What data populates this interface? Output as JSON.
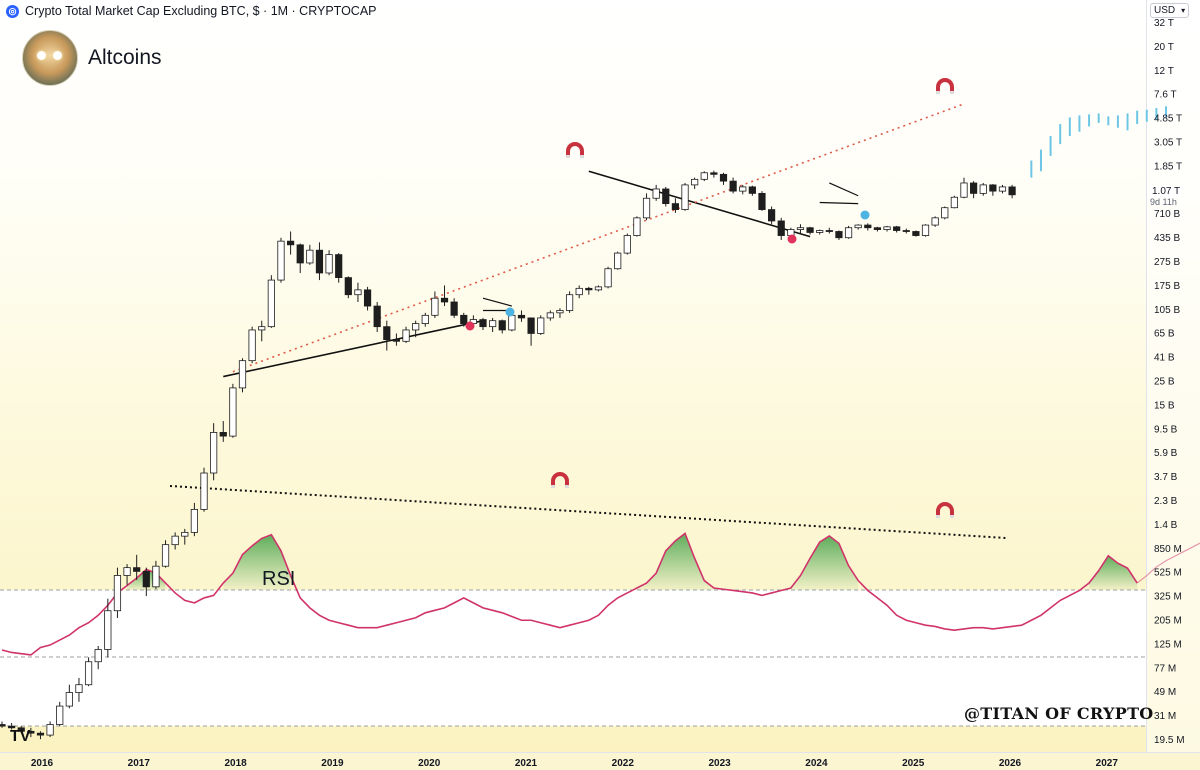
{
  "header": {
    "symbol_title": "Crypto Total Market Cap Excluding BTC, $ · 1M · CRYPTOCAP",
    "logo_icon": "crypto-coin-icon"
  },
  "brand": {
    "name": "Altcoins",
    "avatar_icon": "avatar-portrait-icon"
  },
  "axis_controls": {
    "currency": "USD",
    "dropdown_icon": "chevron-down-icon"
  },
  "last_price": {
    "value": "1.07 T",
    "countdown": "9d 11h"
  },
  "rsi_label": "RSI",
  "watermark": "@TITAN OF CRYPTO",
  "platform_logo": "TV",
  "colors": {
    "bull_candle": "#ffffff",
    "bear_candle": "#1e1e1e",
    "projection": "#6ec6e6",
    "rsi_line": "#d0336b",
    "rsi_fill": "#43a047",
    "resistance_dots": "#e05a4a",
    "red_marker": "#e0335b",
    "blue_marker": "#4db3e0",
    "magnet": "#c8313e"
  },
  "chart_data": {
    "type": "candlestick",
    "scale": "log",
    "y_ticks": [
      "32 T",
      "20 T",
      "12 T",
      "7.6 T",
      "4.85 T",
      "3.05 T",
      "1.85 T",
      "1.07 T",
      "710 B",
      "435 B",
      "275 B",
      "175 B",
      "105 B",
      "65 B",
      "41 B",
      "25 B",
      "15 B",
      "9.5 B",
      "5.9 B",
      "3.7 B",
      "2.3 B",
      "1.4 B",
      "850 M",
      "525 M",
      "325 M",
      "205 M",
      "125 M",
      "77 M",
      "49 M",
      "31 M",
      "19.5 M"
    ],
    "x_ticks": [
      "2016",
      "2017",
      "2018",
      "2019",
      "2020",
      "2021",
      "2022",
      "2023",
      "2024",
      "2025",
      "2026",
      "2027"
    ],
    "candles": [
      {
        "o": 32,
        "h": 34,
        "l": 30,
        "c": 31
      },
      {
        "o": 31,
        "h": 33,
        "l": 29,
        "c": 30
      },
      {
        "o": 30,
        "h": 31,
        "l": 27,
        "c": 28
      },
      {
        "o": 28,
        "h": 30,
        "l": 25,
        "c": 27
      },
      {
        "o": 27,
        "h": 28,
        "l": 24,
        "c": 26
      },
      {
        "o": 26,
        "h": 34,
        "l": 25,
        "c": 32
      },
      {
        "o": 32,
        "h": 50,
        "l": 31,
        "c": 46
      },
      {
        "o": 46,
        "h": 70,
        "l": 44,
        "c": 60
      },
      {
        "o": 60,
        "h": 80,
        "l": 50,
        "c": 70
      },
      {
        "o": 70,
        "h": 120,
        "l": 68,
        "c": 110
      },
      {
        "o": 110,
        "h": 150,
        "l": 95,
        "c": 140
      },
      {
        "o": 140,
        "h": 380,
        "l": 120,
        "c": 300
      },
      {
        "o": 300,
        "h": 700,
        "l": 260,
        "c": 600
      },
      {
        "o": 600,
        "h": 750,
        "l": 500,
        "c": 700
      },
      {
        "o": 700,
        "h": 900,
        "l": 550,
        "c": 650
      },
      {
        "o": 650,
        "h": 700,
        "l": 400,
        "c": 480
      },
      {
        "o": 480,
        "h": 800,
        "l": 460,
        "c": 720
      },
      {
        "o": 720,
        "h": 1200,
        "l": 700,
        "c": 1100
      },
      {
        "o": 1100,
        "h": 1400,
        "l": 1000,
        "c": 1300
      },
      {
        "o": 1300,
        "h": 1500,
        "l": 1100,
        "c": 1400
      },
      {
        "o": 1400,
        "h": 2500,
        "l": 1300,
        "c": 2200
      },
      {
        "o": 2200,
        "h": 5000,
        "l": 2100,
        "c": 4500
      },
      {
        "o": 4500,
        "h": 12000,
        "l": 3900,
        "c": 10000
      },
      {
        "o": 10000,
        "h": 12500,
        "l": 8300,
        "c": 9300
      },
      {
        "o": 9300,
        "h": 26000,
        "l": 9000,
        "c": 24000
      },
      {
        "o": 24000,
        "h": 43000,
        "l": 22000,
        "c": 41000
      },
      {
        "o": 41000,
        "h": 80000,
        "l": 39000,
        "c": 75000
      },
      {
        "o": 75000,
        "h": 90000,
        "l": 60000,
        "c": 80000
      },
      {
        "o": 80000,
        "h": 220000,
        "l": 78000,
        "c": 200000
      },
      {
        "o": 200000,
        "h": 460000,
        "l": 190000,
        "c": 430000
      },
      {
        "o": 430000,
        "h": 520000,
        "l": 330000,
        "c": 400000
      },
      {
        "o": 400000,
        "h": 410000,
        "l": 230000,
        "c": 280000
      },
      {
        "o": 280000,
        "h": 400000,
        "l": 270000,
        "c": 360000
      },
      {
        "o": 360000,
        "h": 420000,
        "l": 200000,
        "c": 230000
      },
      {
        "o": 230000,
        "h": 360000,
        "l": 220000,
        "c": 330000
      },
      {
        "o": 330000,
        "h": 340000,
        "l": 190000,
        "c": 210000
      },
      {
        "o": 210000,
        "h": 215000,
        "l": 140000,
        "c": 150000
      },
      {
        "o": 150000,
        "h": 190000,
        "l": 130000,
        "c": 165000
      },
      {
        "o": 165000,
        "h": 175000,
        "l": 110000,
        "c": 120000
      },
      {
        "o": 120000,
        "h": 130000,
        "l": 72000,
        "c": 80000
      },
      {
        "o": 80000,
        "h": 90000,
        "l": 50000,
        "c": 62000
      },
      {
        "o": 62000,
        "h": 70000,
        "l": 55000,
        "c": 60000
      },
      {
        "o": 60000,
        "h": 80000,
        "l": 58000,
        "c": 75000
      },
      {
        "o": 75000,
        "h": 90000,
        "l": 65000,
        "c": 85000
      },
      {
        "o": 85000,
        "h": 105000,
        "l": 80000,
        "c": 100000
      },
      {
        "o": 100000,
        "h": 160000,
        "l": 95000,
        "c": 140000
      },
      {
        "o": 140000,
        "h": 180000,
        "l": 120000,
        "c": 130000
      },
      {
        "o": 130000,
        "h": 140000,
        "l": 95000,
        "c": 100000
      },
      {
        "o": 100000,
        "h": 105000,
        "l": 80000,
        "c": 85000
      },
      {
        "o": 85000,
        "h": 100000,
        "l": 78000,
        "c": 92000
      },
      {
        "o": 92000,
        "h": 95000,
        "l": 75000,
        "c": 80000
      },
      {
        "o": 80000,
        "h": 95000,
        "l": 72000,
        "c": 90000
      },
      {
        "o": 90000,
        "h": 92000,
        "l": 70000,
        "c": 75000
      },
      {
        "o": 75000,
        "h": 110000,
        "l": 73000,
        "c": 100000
      },
      {
        "o": 100000,
        "h": 110000,
        "l": 88000,
        "c": 95000
      },
      {
        "o": 95000,
        "h": 96000,
        "l": 55000,
        "c": 70000
      },
      {
        "o": 70000,
        "h": 100000,
        "l": 68000,
        "c": 95000
      },
      {
        "o": 95000,
        "h": 110000,
        "l": 90000,
        "c": 105000
      },
      {
        "o": 105000,
        "h": 115000,
        "l": 95000,
        "c": 110000
      },
      {
        "o": 110000,
        "h": 160000,
        "l": 105000,
        "c": 150000
      },
      {
        "o": 150000,
        "h": 180000,
        "l": 140000,
        "c": 170000
      },
      {
        "o": 170000,
        "h": 175000,
        "l": 150000,
        "c": 165000
      },
      {
        "o": 165000,
        "h": 180000,
        "l": 160000,
        "c": 175000
      },
      {
        "o": 175000,
        "h": 260000,
        "l": 170000,
        "c": 250000
      },
      {
        "o": 250000,
        "h": 350000,
        "l": 245000,
        "c": 340000
      },
      {
        "o": 340000,
        "h": 500000,
        "l": 330000,
        "c": 480000
      },
      {
        "o": 480000,
        "h": 700000,
        "l": 470000,
        "c": 680000
      },
      {
        "o": 680000,
        "h": 1100000,
        "l": 650000,
        "c": 1000000
      },
      {
        "o": 1000000,
        "h": 1300000,
        "l": 950000,
        "c": 1200000
      },
      {
        "o": 1200000,
        "h": 1250000,
        "l": 850000,
        "c": 900000
      },
      {
        "o": 900000,
        "h": 1000000,
        "l": 750000,
        "c": 800000
      },
      {
        "o": 800000,
        "h": 1350000,
        "l": 780000,
        "c": 1300000
      },
      {
        "o": 1300000,
        "h": 1500000,
        "l": 1200000,
        "c": 1450000
      },
      {
        "o": 1450000,
        "h": 1700000,
        "l": 1400000,
        "c": 1650000
      },
      {
        "o": 1650000,
        "h": 1720000,
        "l": 1500000,
        "c": 1600000
      },
      {
        "o": 1600000,
        "h": 1650000,
        "l": 1300000,
        "c": 1400000
      },
      {
        "o": 1400000,
        "h": 1500000,
        "l": 1100000,
        "c": 1150000
      },
      {
        "o": 1150000,
        "h": 1300000,
        "l": 1080000,
        "c": 1250000
      },
      {
        "o": 1250000,
        "h": 1280000,
        "l": 1050000,
        "c": 1100000
      },
      {
        "o": 1100000,
        "h": 1150000,
        "l": 780000,
        "c": 800000
      },
      {
        "o": 800000,
        "h": 850000,
        "l": 600000,
        "c": 640000
      },
      {
        "o": 640000,
        "h": 680000,
        "l": 440000,
        "c": 480000
      },
      {
        "o": 480000,
        "h": 560000,
        "l": 460000,
        "c": 540000
      },
      {
        "o": 540000,
        "h": 600000,
        "l": 500000,
        "c": 560000
      },
      {
        "o": 560000,
        "h": 570000,
        "l": 490000,
        "c": 510000
      },
      {
        "o": 510000,
        "h": 540000,
        "l": 490000,
        "c": 530000
      },
      {
        "o": 530000,
        "h": 560000,
        "l": 500000,
        "c": 520000
      },
      {
        "o": 520000,
        "h": 530000,
        "l": 440000,
        "c": 460000
      },
      {
        "o": 460000,
        "h": 580000,
        "l": 450000,
        "c": 560000
      },
      {
        "o": 560000,
        "h": 600000,
        "l": 540000,
        "c": 590000
      },
      {
        "o": 590000,
        "h": 610000,
        "l": 530000,
        "c": 560000
      },
      {
        "o": 560000,
        "h": 570000,
        "l": 520000,
        "c": 540000
      },
      {
        "o": 540000,
        "h": 580000,
        "l": 520000,
        "c": 570000
      },
      {
        "o": 570000,
        "h": 580000,
        "l": 510000,
        "c": 530000
      },
      {
        "o": 530000,
        "h": 550000,
        "l": 500000,
        "c": 520000
      },
      {
        "o": 520000,
        "h": 530000,
        "l": 470000,
        "c": 480000
      },
      {
        "o": 480000,
        "h": 600000,
        "l": 470000,
        "c": 590000
      },
      {
        "o": 590000,
        "h": 700000,
        "l": 570000,
        "c": 680000
      },
      {
        "o": 680000,
        "h": 850000,
        "l": 660000,
        "c": 830000
      },
      {
        "o": 830000,
        "h": 1050000,
        "l": 820000,
        "c": 1020000
      },
      {
        "o": 1020000,
        "h": 1500000,
        "l": 1000000,
        "c": 1350000
      },
      {
        "o": 1350000,
        "h": 1400000,
        "l": 1000000,
        "c": 1100000
      },
      {
        "o": 1100000,
        "h": 1350000,
        "l": 1050000,
        "c": 1300000
      },
      {
        "o": 1300000,
        "h": 1320000,
        "l": 1050000,
        "c": 1150000
      },
      {
        "o": 1150000,
        "h": 1300000,
        "l": 1100000,
        "c": 1250000
      },
      {
        "o": 1250000,
        "h": 1300000,
        "l": 1000000,
        "c": 1070000
      }
    ],
    "projection": [
      [
        1500000,
        2100000
      ],
      [
        1700000,
        2600000
      ],
      [
        2300000,
        3400000
      ],
      [
        2900000,
        4300000
      ],
      [
        3400000,
        4900000
      ],
      [
        3700000,
        5100000
      ],
      [
        4100000,
        5200000
      ],
      [
        4400000,
        5300000
      ],
      [
        4200000,
        5000000
      ],
      [
        4000000,
        5100000
      ],
      [
        3800000,
        5300000
      ],
      [
        4300000,
        5600000
      ],
      [
        4500000,
        5700000
      ],
      [
        4700000,
        5900000
      ],
      [
        4900000,
        6100000
      ]
    ],
    "rsi": [
      48,
      46,
      45,
      44,
      50,
      52,
      56,
      60,
      66,
      70,
      76,
      84,
      94,
      100,
      106,
      113,
      110,
      102,
      94,
      88,
      86,
      90,
      92,
      102,
      110,
      125,
      132,
      138,
      141,
      128,
      108,
      90,
      82,
      76,
      72,
      70,
      68,
      66,
      66,
      66,
      68,
      70,
      72,
      74,
      78,
      80,
      82,
      86,
      90,
      86,
      82,
      80,
      78,
      75,
      72,
      72,
      70,
      68,
      66,
      68,
      70,
      72,
      76,
      84,
      90,
      94,
      98,
      102,
      110,
      128,
      136,
      142,
      122,
      104,
      98,
      97,
      96,
      95,
      94,
      92,
      94,
      96,
      98,
      108,
      122,
      135,
      140,
      134,
      116,
      104,
      96,
      90,
      84,
      76,
      72,
      70,
      68,
      67,
      65,
      64,
      65,
      66,
      66,
      65,
      66,
      67,
      68,
      72,
      76,
      82,
      88,
      92,
      96,
      102,
      112,
      124,
      118,
      114,
      102
    ],
    "rsi_projection": [
      108,
      115,
      120,
      124,
      128,
      132,
      136,
      136,
      138,
      140,
      142,
      144,
      146,
      142,
      140,
      134,
      128,
      126
    ],
    "annotations": {
      "magnet_icon": "magnet-icon",
      "red_marker_icon": "red-dot-marker-icon",
      "blue_marker_icon": "blue-dot-marker-icon"
    }
  }
}
